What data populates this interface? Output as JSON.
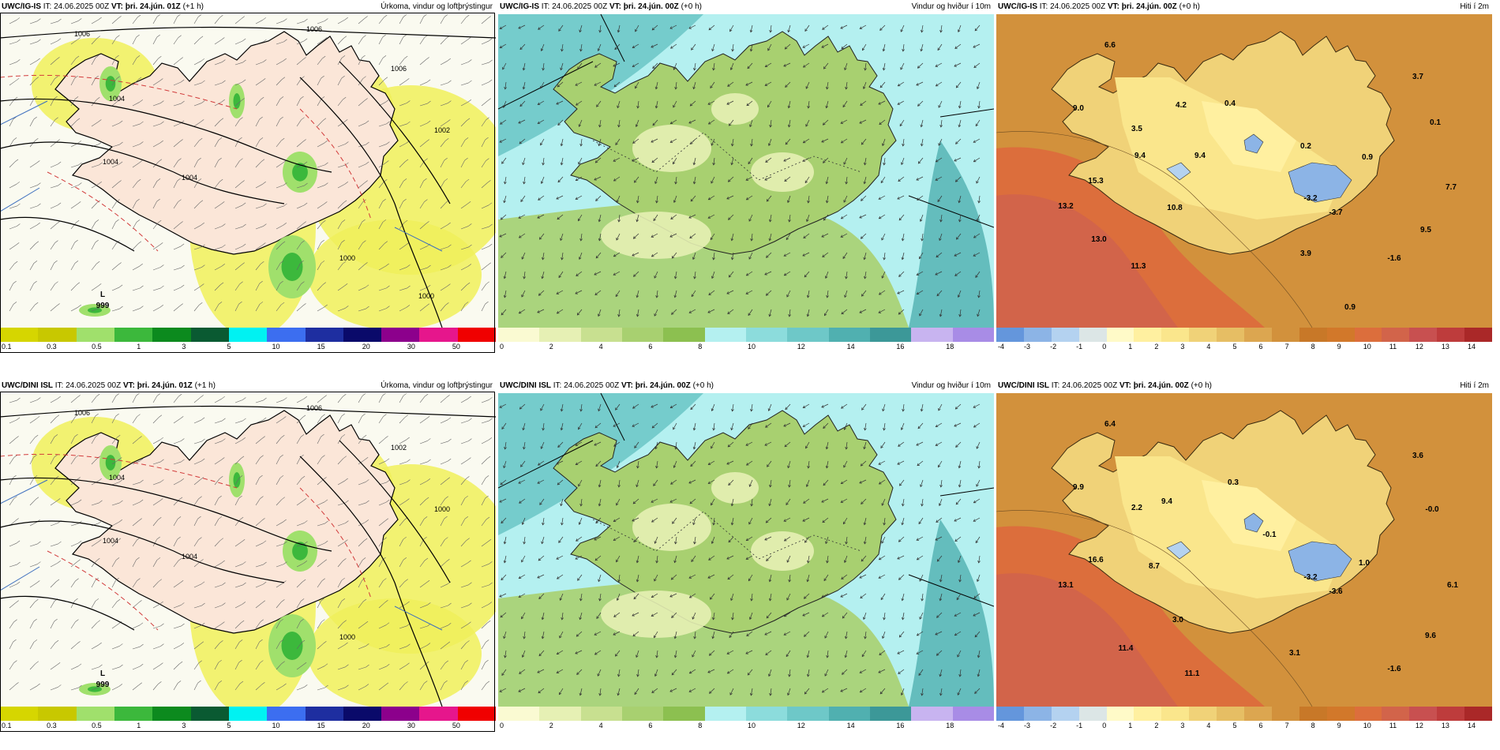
{
  "colors": {
    "precip": [
      "#d6d600",
      "#c8c800",
      "#a0e06c",
      "#3cb83c",
      "#0c8a1e",
      "#0a5a32",
      "#00f2f2",
      "#3c6ef0",
      "#1e2ea0",
      "#0a0a6a",
      "#8c008c",
      "#e6168c",
      "#f00000"
    ],
    "wind": [
      "#fafad2",
      "#e6f0b4",
      "#c8e090",
      "#a8d070",
      "#8cc050",
      "#b4f0f0",
      "#8cdcdc",
      "#6ec8c8",
      "#50b0b0",
      "#3c9898",
      "#c8b4f0",
      "#a88ce6"
    ],
    "temp": [
      "#6496dc",
      "#8cb4e6",
      "#b4d2f0",
      "#dce6e6",
      "#fffac8",
      "#fff0a0",
      "#fae68c",
      "#f0d278",
      "#e6be64",
      "#dca650",
      "#d2913c",
      "#c87828",
      "#d2782a",
      "#dc6e3c",
      "#d2644a",
      "#c85050",
      "#be3c3c",
      "#aa2828"
    ]
  },
  "precip_ticks": [
    "0.1",
    "0.3",
    "0.5",
    "1",
    "3",
    "5",
    "10",
    "15",
    "20",
    "30",
    "50"
  ],
  "wind_ticks": [
    "0",
    "2",
    "4",
    "6",
    "8",
    "10",
    "12",
    "14",
    "16",
    "18"
  ],
  "temp_ticks": [
    "-4",
    "-3",
    "-2",
    "-1",
    "0",
    "1",
    "2",
    "3",
    "4",
    "5",
    "6",
    "7",
    "8",
    "9",
    "10",
    "11",
    "12",
    "13",
    "14"
  ],
  "rows": [
    {
      "model": "UWC/IG-IS",
      "panels": [
        {
          "it": "IT: 24.06.2025 00Z",
          "vt_label": "VT:",
          "vt": "þri. 24.jún. 01Z",
          "lead": "(+1 h)",
          "title": "Úrkoma, vindur og loftþrýstingur",
          "isobars": [
            "1006",
            "1006",
            "1004",
            "1004",
            "1004",
            "1006",
            "1002",
            "1000",
            "1000"
          ],
          "low_letter": "L",
          "low_value": "999"
        },
        {
          "it": "IT: 24.06.2025 00Z",
          "vt_label": "VT:",
          "vt": "þri. 24.jún. 00Z",
          "lead": "(+0 h)",
          "title": "Vindur og hviður í 10m"
        },
        {
          "it": "IT: 24.06.2025 00Z",
          "vt_label": "VT:",
          "vt": "þri. 24.jún. 00Z",
          "lead": "(+0 h)",
          "title": "Hiti í 2m",
          "values": [
            "6.6",
            "3.7",
            "9.0",
            "3.5",
            "4.2",
            "0.4",
            "0.1",
            "9.4",
            "9.4",
            "0.2",
            "0.9",
            "15.3",
            "-3.2",
            "-3.7",
            "7.7",
            "13.2",
            "10.8",
            "9.5",
            "13.0",
            "3.9",
            "-1.6",
            "11.3",
            "0.9"
          ]
        }
      ]
    },
    {
      "model": "UWC/DINI ISL",
      "panels": [
        {
          "it": "IT: 24.06.2025 00Z",
          "vt_label": "VT:",
          "vt": "þri. 24.jún. 01Z",
          "lead": "(+1 h)",
          "title": "Úrkoma, vindur og loftþrýstingur",
          "isobars": [
            "1006",
            "1006",
            "1004",
            "1004",
            "1004",
            "1002",
            "1000",
            "1000"
          ],
          "low_letter": "L",
          "low_value": "999"
        },
        {
          "it": "IT: 24.06.2025 00Z",
          "vt_label": "VT:",
          "vt": "þri. 24.jún. 00Z",
          "lead": "(+0 h)",
          "title": "Vindur og hviður í 10m"
        },
        {
          "it": "IT: 24.06.2025 00Z",
          "vt_label": "VT:",
          "vt": "þri. 24.jún. 00Z",
          "lead": "(+0 h)",
          "title": "Hiti í 2m",
          "values": [
            "6.4",
            "3.6",
            "9.9",
            "2.2",
            "9.4",
            "0.3",
            "-0.0",
            "-0.1",
            "16.6",
            "8.7",
            "1.0",
            "-3.2",
            "-3.6",
            "6.1",
            "13.1",
            "3.0",
            "9.6",
            "11.4",
            "3.1",
            "-1.6",
            "11.1"
          ]
        }
      ]
    }
  ]
}
